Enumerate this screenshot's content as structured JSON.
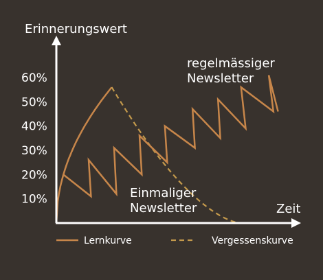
{
  "colors": {
    "background": "#38322d",
    "axis": "#ffffff",
    "learning": "#c7864a",
    "forgetting": "#c49a4c",
    "text": "#ffffff"
  },
  "chart_data": {
    "type": "line",
    "title": "",
    "ylabel": "Erinnerungswert",
    "xlabel": "Zeit",
    "ylim": [
      0,
      70
    ],
    "xlim": [
      0,
      100
    ],
    "yticks": [
      {
        "value": 10,
        "label": "10%"
      },
      {
        "value": 20,
        "label": "20%"
      },
      {
        "value": 30,
        "label": "30%"
      },
      {
        "value": 40,
        "label": "40%"
      },
      {
        "value": 50,
        "label": "50%"
      },
      {
        "value": 60,
        "label": "60%"
      }
    ],
    "annotations": [
      {
        "id": "regular",
        "lines": [
          "regelmässiger",
          "Newsletter"
        ],
        "x": 55,
        "y": 63
      },
      {
        "id": "single",
        "lines": [
          "Einmaliger",
          "Newsletter"
        ],
        "x": 31,
        "y": 11.5
      }
    ],
    "legend": {
      "placement": "bottom",
      "entries": [
        {
          "label": "Lernkurve",
          "style": "solid",
          "series": "learning"
        },
        {
          "label": "Vergessenskurve",
          "style": "dashed",
          "series": "forgetting"
        }
      ]
    },
    "series": [
      {
        "id": "learning",
        "legend_label": "Lernkurve",
        "style": "solid",
        "curve": "sqrt",
        "x": [
          0,
          24
        ],
        "y": [
          0,
          56
        ]
      },
      {
        "id": "forgetting",
        "legend_label": "Vergessenskurve",
        "style": "dashed",
        "curve": "decay",
        "x": [
          24,
          80
        ],
        "y": [
          56,
          0
        ]
      },
      {
        "id": "regular-sawtooth",
        "style": "solid",
        "points": [
          [
            3,
            20
          ],
          [
            15,
            11
          ],
          [
            14,
            26
          ],
          [
            26,
            12
          ],
          [
            25,
            31
          ],
          [
            37,
            20
          ],
          [
            36,
            36
          ],
          [
            48,
            25
          ],
          [
            47,
            40
          ],
          [
            60,
            31
          ],
          [
            59,
            47
          ],
          [
            71,
            35
          ],
          [
            70,
            51
          ],
          [
            82,
            39
          ],
          [
            80,
            56
          ],
          [
            94,
            46
          ],
          [
            92,
            61
          ],
          [
            96,
            46
          ]
        ]
      },
      {
        "id": "regular-decay",
        "style": "dashed",
        "segments": [
          [
            [
              3,
              20
            ],
            [
              15,
              11
            ]
          ],
          [
            [
              14,
              26
            ],
            [
              26,
              12
            ]
          ],
          [
            [
              25,
              31
            ],
            [
              37,
              20
            ]
          ],
          [
            [
              36,
              36
            ],
            [
              48,
              25
            ]
          ],
          [
            [
              47,
              40
            ],
            [
              60,
              31
            ]
          ],
          [
            [
              59,
              47
            ],
            [
              71,
              35
            ]
          ],
          [
            [
              70,
              51
            ],
            [
              82,
              39
            ]
          ],
          [
            [
              80,
              56
            ],
            [
              94,
              46
            ]
          ]
        ]
      }
    ]
  }
}
